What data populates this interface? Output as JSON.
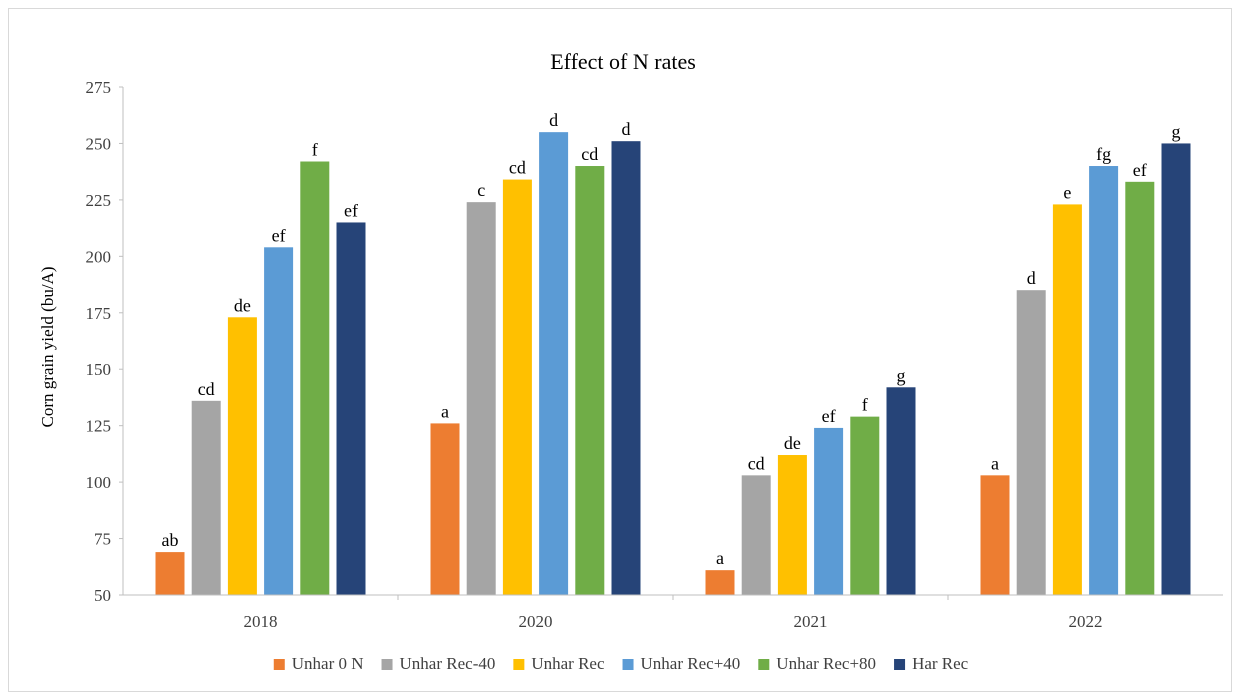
{
  "chart_data": {
    "type": "bar",
    "title": "Effect of N rates",
    "xlabel": "",
    "ylabel": "Corn grain yield  (bu/A)",
    "ylim": [
      50,
      275
    ],
    "yticks": [
      50,
      75,
      100,
      125,
      150,
      175,
      200,
      225,
      250,
      275
    ],
    "categories": [
      "2018",
      "2020",
      "2021",
      "2022"
    ],
    "grid": false,
    "legend_position": "bottom",
    "series": [
      {
        "name": "Unhar 0 N",
        "color": "#ED7D31",
        "values": [
          69,
          126,
          61,
          103
        ],
        "labels": [
          "ab",
          "a",
          "a",
          "a"
        ]
      },
      {
        "name": "Unhar Rec-40",
        "color": "#A5A5A5",
        "values": [
          136,
          224,
          103,
          185
        ],
        "labels": [
          "cd",
          "c",
          "cd",
          "d"
        ]
      },
      {
        "name": "Unhar Rec",
        "color": "#FFC000",
        "values": [
          173,
          234,
          112,
          223
        ],
        "labels": [
          "de",
          "cd",
          "de",
          "e"
        ]
      },
      {
        "name": "Unhar Rec+40",
        "color": "#5B9BD5",
        "values": [
          204,
          255,
          124,
          240
        ],
        "labels": [
          "ef",
          "d",
          "ef",
          "fg"
        ]
      },
      {
        "name": "Unhar Rec+80",
        "color": "#70AD47",
        "values": [
          242,
          240,
          129,
          233
        ],
        "labels": [
          "f",
          "cd",
          "f",
          "ef"
        ]
      },
      {
        "name": "Har Rec",
        "color": "#264478",
        "values": [
          215,
          251,
          142,
          250
        ],
        "labels": [
          "ef",
          "d",
          "g",
          "g"
        ]
      }
    ]
  }
}
